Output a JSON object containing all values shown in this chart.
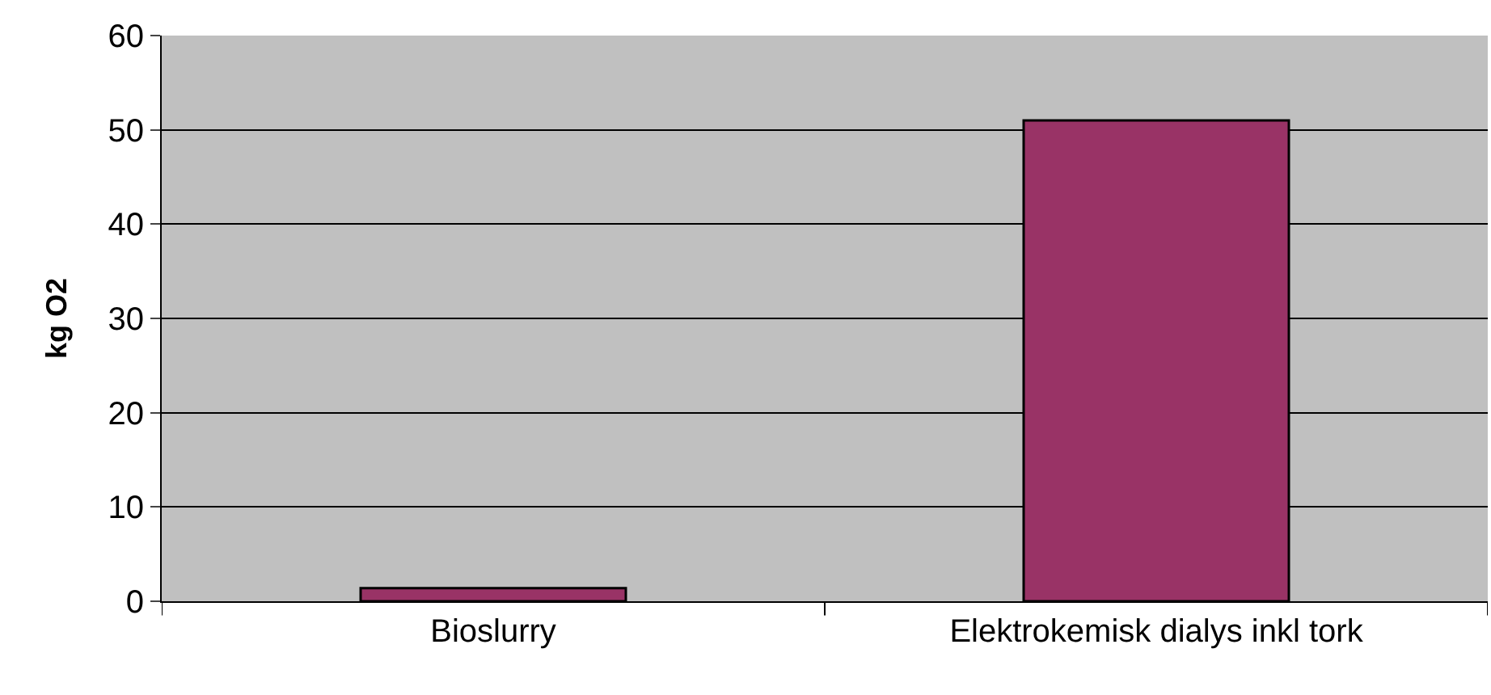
{
  "chart_data": {
    "type": "bar",
    "ylabel": "kg O2",
    "categories": [
      "Bioslurry",
      "Elektrokemisk dialys inkl tork"
    ],
    "values": [
      1.4,
      51
    ],
    "color": "#993366",
    "ylim": [
      0,
      60
    ],
    "yticks": [
      0,
      10,
      20,
      30,
      40,
      50,
      60
    ],
    "grid": "y",
    "legend": false
  }
}
